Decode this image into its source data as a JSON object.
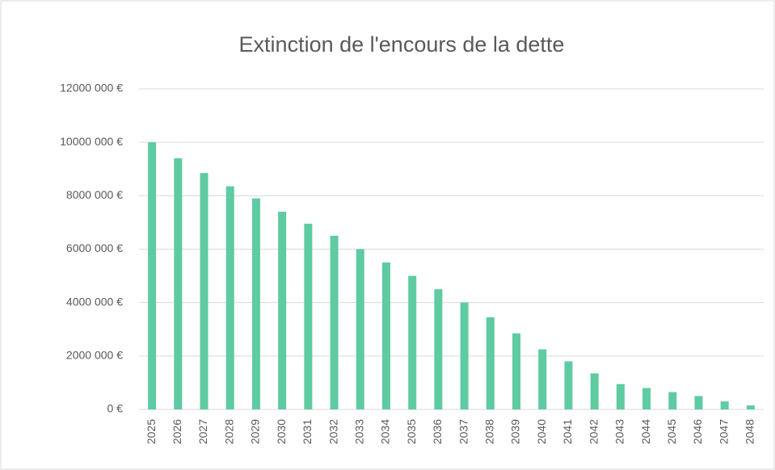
{
  "chart_data": {
    "type": "bar",
    "title": "Extinction de l'encours de la dette",
    "categories": [
      "2025",
      "2026",
      "2027",
      "2028",
      "2029",
      "2030",
      "2031",
      "2032",
      "2033",
      "2034",
      "2035",
      "2036",
      "2037",
      "2038",
      "2039",
      "2040",
      "2041",
      "2042",
      "2043",
      "2044",
      "2045",
      "2046",
      "2047",
      "2048"
    ],
    "values": [
      10000000,
      9400000,
      8850000,
      8350000,
      7900000,
      7400000,
      6950000,
      6500000,
      6000000,
      5500000,
      5000000,
      4500000,
      4000000,
      3450000,
      2850000,
      2250000,
      1800000,
      1350000,
      950000,
      800000,
      650000,
      500000,
      300000,
      150000
    ],
    "color": "#5ecba1",
    "ylim": [
      0,
      12000000
    ],
    "yticks": [
      {
        "value": 0,
        "label": "0 €"
      },
      {
        "value": 2000000,
        "label": "2000 000 €"
      },
      {
        "value": 4000000,
        "label": "4000 000 €"
      },
      {
        "value": 6000000,
        "label": "6000 000 €"
      },
      {
        "value": 8000000,
        "label": "8000 000 €"
      },
      {
        "value": 10000000,
        "label": "10000 000 €"
      },
      {
        "value": 12000000,
        "label": "12000 000 €"
      }
    ],
    "grid": true
  }
}
